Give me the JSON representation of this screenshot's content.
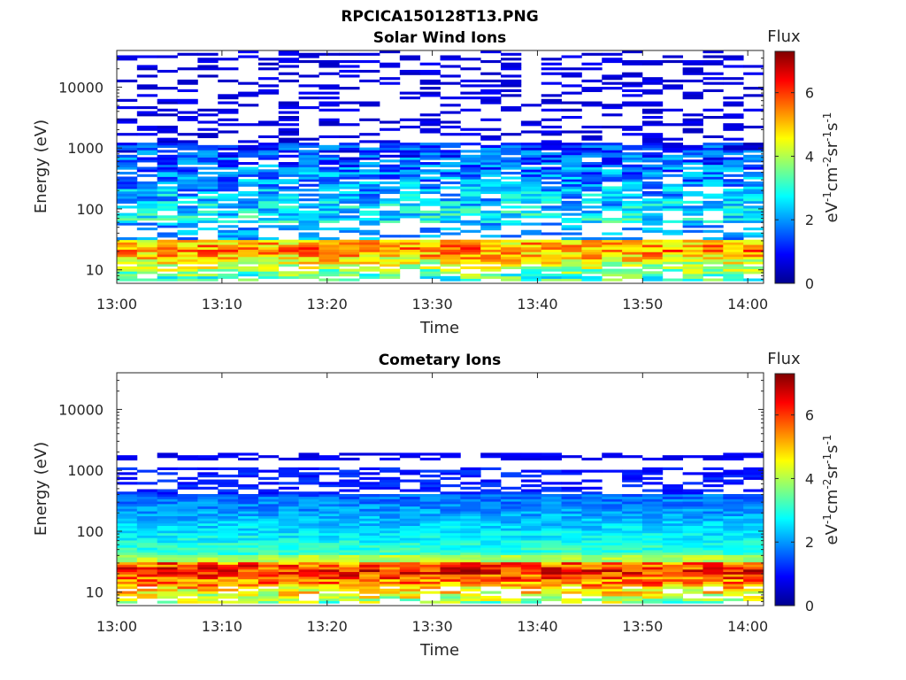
{
  "figure": {
    "title": "RPCICA150128T13.PNG"
  },
  "colors": {
    "axis": "#262626",
    "colormap": [
      "#00008f",
      "#0000ff",
      "#0080ff",
      "#00ffff",
      "#80ff80",
      "#ffff00",
      "#ff8000",
      "#ff0000",
      "#800000"
    ]
  },
  "chart_data": [
    {
      "type": "heatmap",
      "title": "Solar Wind Ions",
      "xlabel": "Time",
      "ylabel": "Energy (eV)",
      "x_ticks": [
        "13:00",
        "13:10",
        "13:20",
        "13:30",
        "13:40",
        "13:50",
        "14:00"
      ],
      "y_ticks": [
        "10",
        "100",
        "1000",
        "10000"
      ],
      "y_scale": "log",
      "ylim": [
        6,
        40000
      ],
      "colorbar": {
        "title": "Flux",
        "label": "eV-1cm-2sr-1s-1",
        "ticks": [
          "0",
          "2",
          "4",
          "6"
        ],
        "range": [
          0,
          7.3
        ]
      },
      "profile": {
        "low_energy_peak_ev": 22,
        "low_energy_peak_flux": 5.5,
        "mid_band_ev": [
          60,
          1000
        ],
        "mid_band_flux": 2.5,
        "sparse_high_energy_ev": [
          1000,
          40000
        ],
        "sparse_high_energy_flux": 0.4
      }
    },
    {
      "type": "heatmap",
      "title": "Cometary Ions",
      "xlabel": "Time",
      "ylabel": "Energy (eV)",
      "x_ticks": [
        "13:00",
        "13:10",
        "13:20",
        "13:30",
        "13:40",
        "13:50",
        "14:00"
      ],
      "y_ticks": [
        "10",
        "100",
        "1000",
        "10000"
      ],
      "y_scale": "log",
      "ylim": [
        6,
        40000
      ],
      "colorbar": {
        "title": "Flux",
        "label": "eV-1cm-2sr-1s-1",
        "ticks": [
          "0",
          "2",
          "4",
          "6"
        ],
        "range": [
          0,
          7.3
        ]
      },
      "profile": {
        "low_energy_peak_ev": 22,
        "low_energy_peak_flux": 6.3,
        "mid_band_ev": [
          40,
          400
        ],
        "mid_band_flux": 3.2,
        "high_energy_band_ev": [
          1500,
          2000
        ],
        "high_energy_band_flux": 0.6
      }
    }
  ]
}
